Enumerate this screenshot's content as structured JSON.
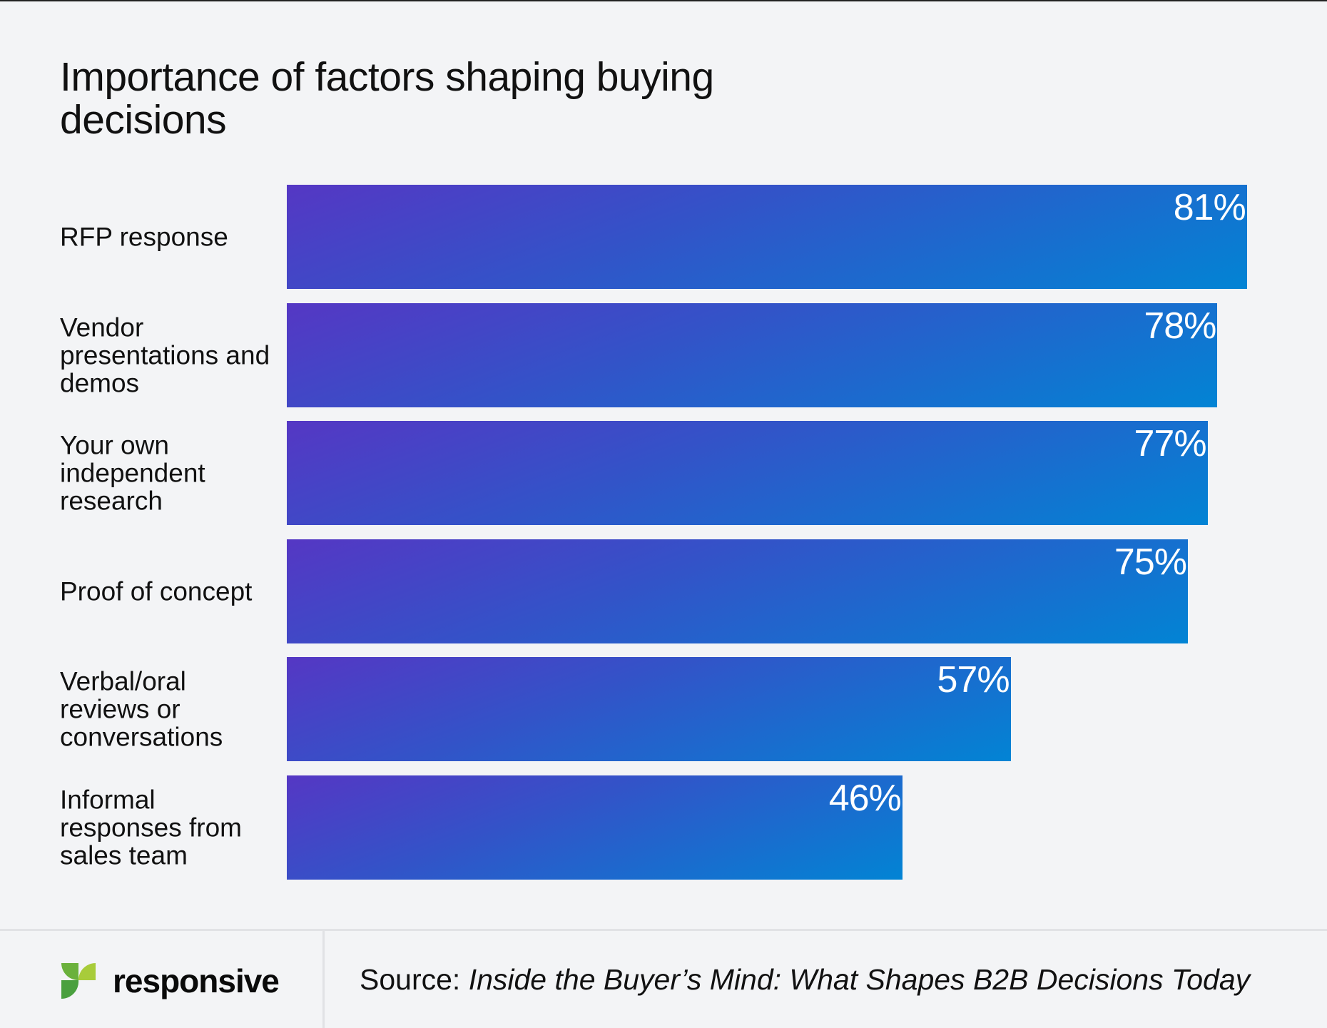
{
  "chart_data": {
    "type": "bar",
    "orientation": "horizontal",
    "title": "Importance of factors shaping buying decisions",
    "categories": [
      "RFP response",
      "Vendor presentations and demos",
      "Your own independent research",
      "Proof of concept",
      "Verbal/oral reviews or conversations",
      "Informal responses from sales team"
    ],
    "values": [
      81,
      78,
      77,
      75,
      57,
      46
    ],
    "value_labels": [
      "81%",
      "78%",
      "77%",
      "75%",
      "57%",
      "46%"
    ],
    "grid": false,
    "colors": {
      "gradient_start": "#5537c4",
      "gradient_end": "#0284d4"
    }
  },
  "footer": {
    "logo_text": "responsive",
    "source_prefix": "Source: ",
    "source_title": "Inside the Buyer’s Mind: What Shapes B2B Decisions Today"
  }
}
